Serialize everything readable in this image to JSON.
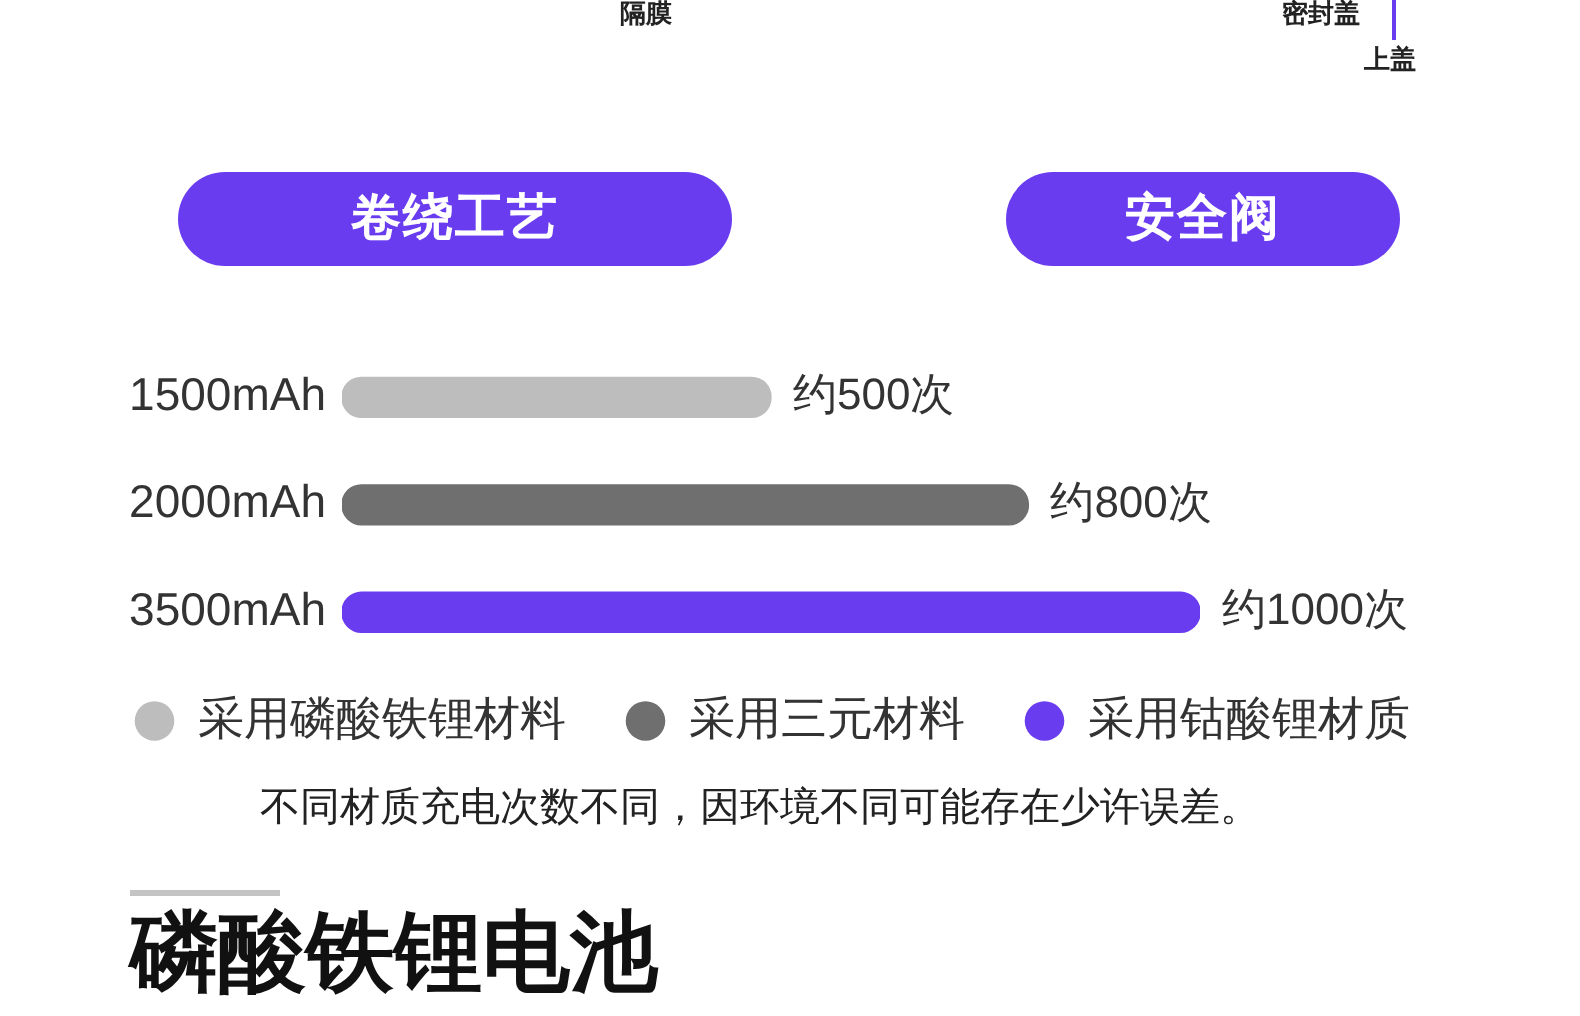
{
  "chart_data": {
    "type": "bar",
    "orientation": "horizontal",
    "categories": [
      "1500mAh",
      "2000mAh",
      "3500mAh"
    ],
    "series": [
      {
        "name": "采用磷酸铁锂材料",
        "color": "#bdbdbd",
        "values": [
          500,
          null,
          null
        ],
        "value_labels": [
          "约500次",
          null,
          null
        ]
      },
      {
        "name": "采用三元材料",
        "color": "#6f6f6f",
        "values": [
          null,
          800,
          null
        ],
        "value_labels": [
          null,
          "约800次",
          null
        ]
      },
      {
        "name": "采用钴酸锂材质",
        "color": "#6a3cf0",
        "values": [
          null,
          null,
          1000
        ],
        "value_labels": [
          null,
          null,
          "约1000次"
        ]
      }
    ],
    "legend": "bottom",
    "tick_labels": "y",
    "annotations": [
      "隔膜",
      "密封盖",
      "上盖",
      "卷绕工艺",
      "安全阀",
      "不同材质充电次数不同，因环境不同可能存在少许误差。",
      "磷酸铁锂电池"
    ]
  }
}
